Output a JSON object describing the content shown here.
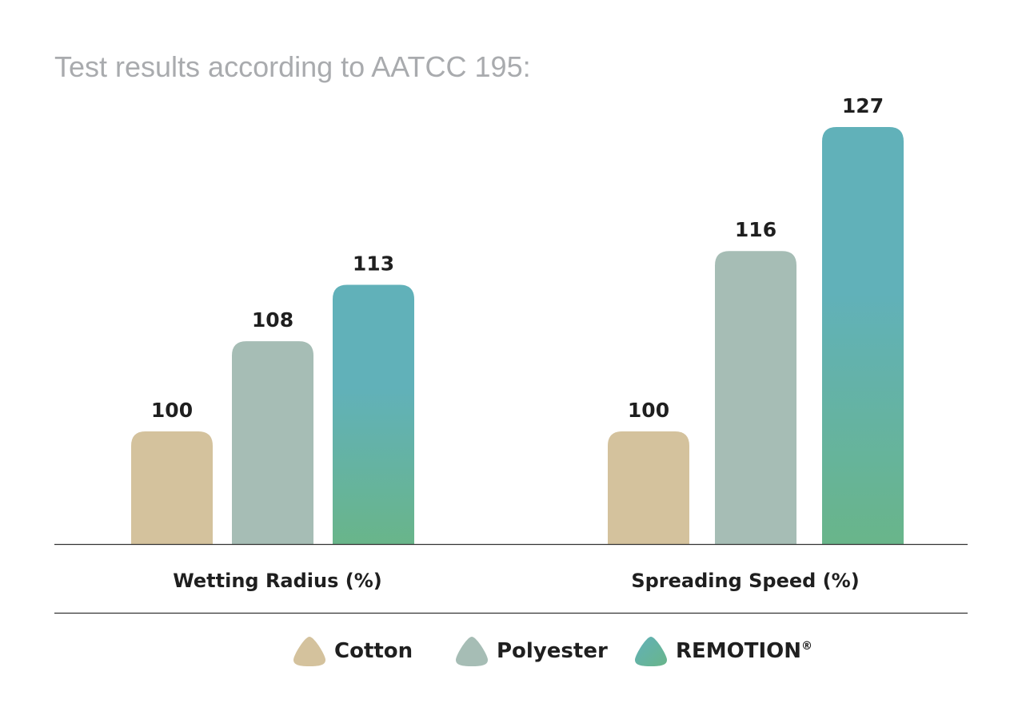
{
  "chart_data": {
    "type": "bar",
    "title": "Test results according to AATCC 195:",
    "categories": [
      "Wetting Radius (%)",
      "Spreading Speed (%)"
    ],
    "series": [
      {
        "name": "Cotton",
        "values": [
          100,
          100
        ],
        "color": "#d4c29d"
      },
      {
        "name": "Polyester",
        "values": [
          108,
          116
        ],
        "color": "#a6bdb5"
      },
      {
        "name": "REMOTION",
        "values": [
          113,
          127
        ],
        "color_top": "#61b1b9",
        "color_bottom": "#69b58a"
      }
    ],
    "legend_superscript": "®",
    "legend_position": "bottom",
    "grid": false,
    "ylim": [
      0,
      135
    ]
  }
}
